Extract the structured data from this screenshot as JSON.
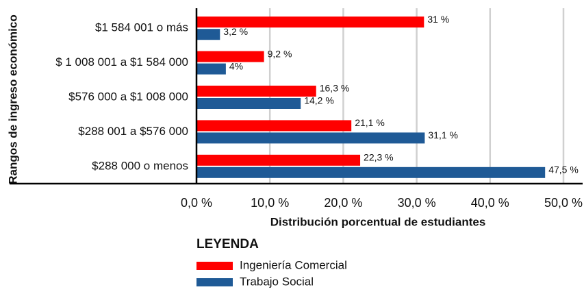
{
  "chart_data": {
    "type": "bar",
    "orientation": "horizontal",
    "y_label": "Rangos de ingreso económico",
    "x_label": "Distribución porcentual de estudiantes",
    "legend_title": "LEYENDA",
    "categories": [
      "$1 584 001 o más",
      "$ 1 008 001 a $1 584 000",
      "$576 000 a $1 008 000",
      "$288 001 a $576 000",
      "$288 000 o menos"
    ],
    "series": [
      {
        "name": "Ingeniería Comercial",
        "color": "#ff0000",
        "values": [
          31,
          9.2,
          16.3,
          21.1,
          22.3
        ],
        "value_labels": [
          "31 %",
          "9,2 %",
          "16,3 %",
          "21,1 %",
          "22,3 %"
        ]
      },
      {
        "name": "Trabajo Social",
        "color": "#1f5a96",
        "values": [
          3.2,
          4,
          14.2,
          31.1,
          47.5
        ],
        "value_labels": [
          "3,2 %",
          "4%",
          "14,2 %",
          "31,1 %",
          "47,5 %"
        ]
      }
    ],
    "xlim": [
      0,
      50
    ],
    "xticks": [
      {
        "value": 0,
        "label": "0,0 %"
      },
      {
        "value": 10,
        "label": "10,0 %"
      },
      {
        "value": 20,
        "label": "20,0 %"
      },
      {
        "value": 30,
        "label": "30,0 %"
      },
      {
        "value": 40,
        "label": "40,0 %"
      },
      {
        "value": 50,
        "label": "50,0 %"
      }
    ],
    "grid": true
  }
}
